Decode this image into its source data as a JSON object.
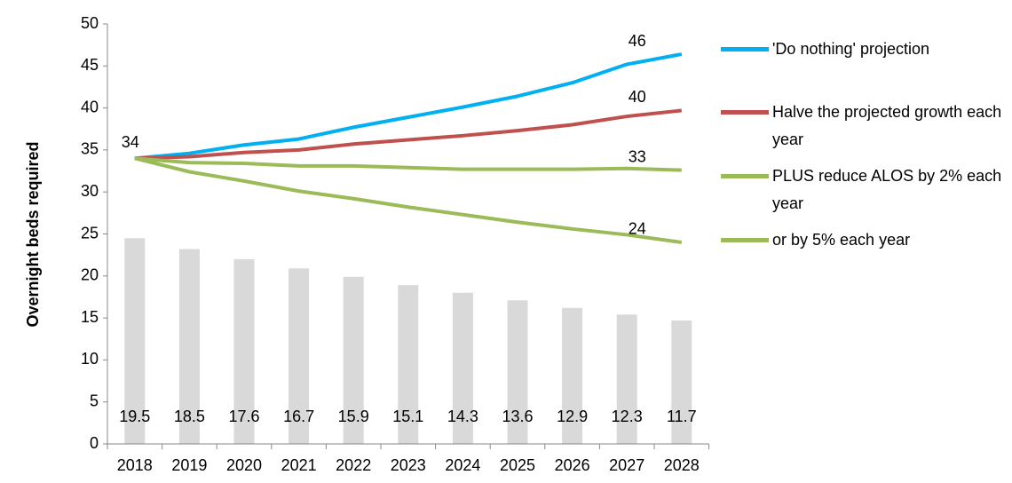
{
  "chart_data": {
    "type": "bar-line",
    "y_label": "Overnight beds required",
    "categories": [
      "2018",
      "2019",
      "2020",
      "2021",
      "2022",
      "2023",
      "2024",
      "2025",
      "2026",
      "2027",
      "2028"
    ],
    "bars": {
      "color": "#d9d9d9",
      "values": [
        24.5,
        23.2,
        22.0,
        20.9,
        19.9,
        18.9,
        18.0,
        17.1,
        16.2,
        15.4,
        14.7
      ]
    },
    "bar_annotations": [
      19.5,
      18.5,
      17.6,
      16.7,
      15.9,
      15.1,
      14.3,
      13.6,
      12.9,
      12.3,
      11.7
    ],
    "series": [
      {
        "name": "'Do nothing' projection",
        "color": "#00b0f0",
        "values": [
          34.0,
          34.6,
          35.6,
          36.3,
          37.7,
          38.9,
          40.1,
          41.4,
          43.0,
          45.2,
          46.4
        ],
        "value_labels": [
          "34",
          null,
          null,
          null,
          null,
          null,
          null,
          null,
          null,
          null,
          "46"
        ]
      },
      {
        "name": "Halve the projected growth each year",
        "color": "#c0504d",
        "values": [
          34.0,
          34.2,
          34.7,
          35.0,
          35.7,
          36.2,
          36.7,
          37.3,
          38.0,
          39.0,
          39.7
        ],
        "value_labels": [
          null,
          null,
          null,
          null,
          null,
          null,
          null,
          null,
          null,
          null,
          "40"
        ]
      },
      {
        "name": "PLUS reduce ALOS by 2% each year",
        "color": "#9bbb59",
        "values": [
          34.0,
          33.5,
          33.4,
          33.1,
          33.1,
          32.9,
          32.7,
          32.7,
          32.7,
          32.8,
          32.6
        ],
        "value_labels": [
          null,
          null,
          null,
          null,
          null,
          null,
          null,
          null,
          null,
          null,
          "33"
        ]
      },
      {
        "name": "or by 5% each year",
        "color": "#9bbb59",
        "values": [
          34.0,
          32.4,
          31.3,
          30.1,
          29.2,
          28.2,
          27.3,
          26.4,
          25.6,
          24.9,
          24.0
        ],
        "value_labels": [
          null,
          null,
          null,
          null,
          null,
          null,
          null,
          null,
          null,
          null,
          "24"
        ]
      }
    ],
    "ylim": [
      0,
      50
    ],
    "yticks": [
      0,
      5,
      10,
      15,
      20,
      25,
      30,
      35,
      40,
      45,
      50
    ],
    "grid": false
  }
}
